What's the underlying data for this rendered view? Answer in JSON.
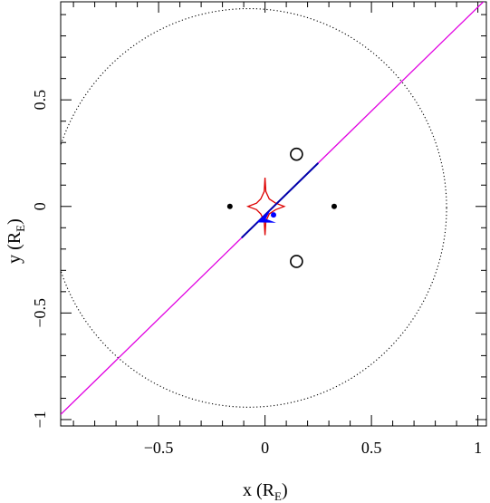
{
  "chart_data": {
    "type": "scatter",
    "title": "",
    "xlabel": {
      "main": "x (R",
      "sub": "E",
      "close": ")"
    },
    "ylabel": {
      "main": "y (R",
      "sub": "E",
      "close": ")"
    },
    "xlim": [
      -0.96,
      1.04
    ],
    "ylim": [
      -1.03,
      0.96
    ],
    "x_ticks": [
      {
        "value": -0.5,
        "label": "−0.5"
      },
      {
        "value": 0,
        "label": "0"
      },
      {
        "value": 0.5,
        "label": "0.5"
      },
      {
        "value": 1,
        "label": "1"
      }
    ],
    "y_ticks": [
      {
        "value": -1,
        "label": "−1"
      },
      {
        "value": -0.5,
        "label": "−0.5"
      },
      {
        "value": 0,
        "label": "0"
      },
      {
        "value": 0.5,
        "label": "0.5"
      }
    ],
    "x_minor_step": 0.1,
    "y_minor_step": 0.1,
    "grid": false,
    "colors": {
      "trajectory": "#e100e1",
      "caustic": "#dd0000",
      "track": "#0000aa",
      "source": "#0000ff",
      "lens": "#000000",
      "image": "#000000",
      "einstein_ring": "#000000"
    },
    "einstein_ring": {
      "center": [
        -0.077,
        -0.007
      ],
      "rx": 0.93,
      "ry": 0.935,
      "style": "dotted"
    },
    "lens_positions": [
      [
        -0.165,
        0.0
      ],
      [
        0.325,
        0.0
      ]
    ],
    "image_positions": [
      [
        0.148,
        0.245
      ],
      [
        0.148,
        -0.258
      ]
    ],
    "source_trajectory": {
      "slope": 0.975,
      "intercept": -0.04
    },
    "caustic_points": [
      [
        0.0,
        0.135
      ],
      [
        0.004,
        0.07
      ],
      [
        0.02,
        0.035
      ],
      [
        0.05,
        0.015
      ],
      [
        0.09,
        0.0
      ],
      [
        0.05,
        -0.015
      ],
      [
        0.02,
        -0.035
      ],
      [
        0.004,
        -0.07
      ],
      [
        0.0,
        -0.135
      ],
      [
        -0.004,
        -0.07
      ],
      [
        -0.02,
        -0.035
      ],
      [
        -0.04,
        -0.015
      ],
      [
        -0.08,
        0.0
      ],
      [
        -0.04,
        0.015
      ],
      [
        -0.02,
        0.035
      ],
      [
        -0.004,
        0.07
      ],
      [
        0.0,
        0.135
      ]
    ],
    "track_segment": {
      "x": [
        -0.11,
        0.25
      ]
    },
    "source_position": [
      0.04,
      -0.04
    ],
    "source_arrow": {
      "from": [
        0.04,
        -0.045
      ],
      "to": [
        -0.04,
        -0.075
      ]
    }
  }
}
